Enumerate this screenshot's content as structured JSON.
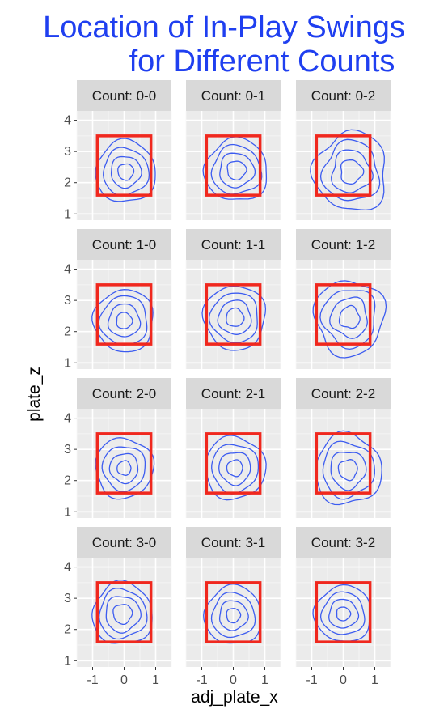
{
  "chart_data": {
    "type": "contour-facets",
    "title_lines": [
      "Location of In-Play Swings",
      "for Different Counts"
    ],
    "xlabel": "adj_plate_x",
    "ylabel": "plate_z",
    "xlim": [
      -1.5,
      1.5
    ],
    "ylim": [
      0.8,
      4.3
    ],
    "x_ticks": [
      -1,
      0,
      1
    ],
    "x_tick_labels": [
      "-1",
      "0",
      "1"
    ],
    "y_ticks": [
      1,
      2,
      3,
      4
    ],
    "y_tick_labels": [
      "1",
      "2",
      "3",
      "4"
    ],
    "strike_zone": {
      "x": [
        -0.85,
        0.85
      ],
      "z": [
        1.6,
        3.5
      ],
      "color": "#f0281e"
    },
    "contour_color": "#3c5cf0",
    "panel_bg": "#ebebeb",
    "strip_bg": "#d9d9d9",
    "grid": true,
    "facets": [
      {
        "label": "Count: 0-0",
        "center": [
          0.05,
          2.35
        ],
        "radii": [
          0.25,
          0.48,
          0.72,
          0.95
        ],
        "yscale": 1.05,
        "wobble": 0.05
      },
      {
        "label": "Count: 0-1",
        "center": [
          0.1,
          2.4
        ],
        "radii": [
          0.3,
          0.55,
          0.78,
          1.0
        ],
        "yscale": 1.0,
        "wobble": 0.06
      },
      {
        "label": "Count: 0-2",
        "center": [
          0.25,
          2.35
        ],
        "radii": [
          0.35,
          0.62,
          0.88,
          1.15
        ],
        "yscale": 1.1,
        "wobble": 0.09
      },
      {
        "label": "Count: 1-0",
        "center": [
          0.0,
          2.35
        ],
        "radii": [
          0.25,
          0.5,
          0.75,
          0.95
        ],
        "yscale": 1.05,
        "wobble": 0.05
      },
      {
        "label": "Count: 1-1",
        "center": [
          0.05,
          2.45
        ],
        "radii": [
          0.28,
          0.52,
          0.76,
          0.98
        ],
        "yscale": 1.05,
        "wobble": 0.05
      },
      {
        "label": "Count: 1-2",
        "center": [
          0.2,
          2.45
        ],
        "radii": [
          0.32,
          0.58,
          0.85,
          1.1
        ],
        "yscale": 1.1,
        "wobble": 0.08
      },
      {
        "label": "Count: 2-0",
        "center": [
          0.0,
          2.4
        ],
        "radii": [
          0.22,
          0.45,
          0.68,
          0.92
        ],
        "yscale": 1.05,
        "wobble": 0.05
      },
      {
        "label": "Count: 2-1",
        "center": [
          0.05,
          2.4
        ],
        "radii": [
          0.25,
          0.5,
          0.74,
          0.96
        ],
        "yscale": 1.05,
        "wobble": 0.05
      },
      {
        "label": "Count: 2-2",
        "center": [
          0.15,
          2.35
        ],
        "radii": [
          0.3,
          0.56,
          0.82,
          1.05
        ],
        "yscale": 1.08,
        "wobble": 0.07
      },
      {
        "label": "Count: 3-0",
        "center": [
          -0.05,
          2.5
        ],
        "radii": [
          0.3,
          0.55,
          0.75,
          0.95
        ],
        "yscale": 1.05,
        "wobble": 0.06
      },
      {
        "label": "Count: 3-1",
        "center": [
          0.0,
          2.45
        ],
        "radii": [
          0.22,
          0.45,
          0.68,
          0.9
        ],
        "yscale": 1.05,
        "wobble": 0.05
      },
      {
        "label": "Count: 3-2",
        "center": [
          0.0,
          2.5
        ],
        "radii": [
          0.22,
          0.46,
          0.68,
          0.9
        ],
        "yscale": 1.0,
        "wobble": 0.05
      }
    ]
  }
}
